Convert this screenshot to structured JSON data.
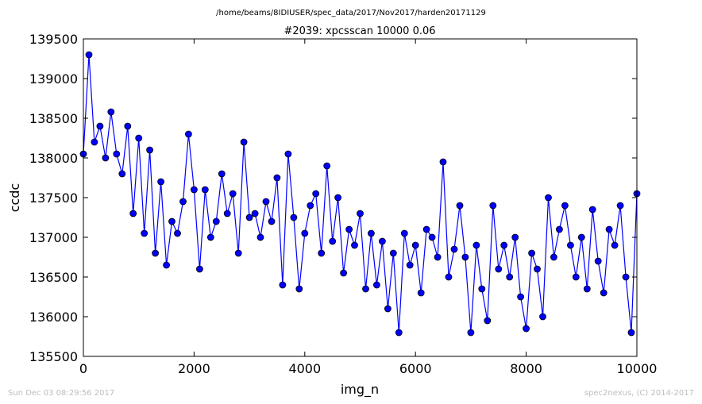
{
  "chart_data": {
    "type": "line",
    "suptitle": "/home/beams/8IDIUSER/spec_data/2017/Nov2017/harden20171129",
    "title": "#2039: xpcsscan 10000 0.06",
    "xlabel": "img_n",
    "ylabel": "ccdc",
    "xlim": [
      0,
      10000
    ],
    "ylim": [
      135500,
      139500
    ],
    "xticks": [
      0,
      2000,
      4000,
      6000,
      8000,
      10000
    ],
    "yticks": [
      135500,
      136000,
      136500,
      137000,
      137500,
      138000,
      138500,
      139000,
      139500
    ],
    "xtick_labels": [
      "0",
      "2000",
      "4000",
      "6000",
      "8000",
      "10000"
    ],
    "ytick_labels": [
      "135500",
      "136000",
      "136500",
      "137000",
      "137500",
      "138000",
      "138500",
      "139000",
      "139500"
    ],
    "grid": false,
    "marker": "circle",
    "line_color": "#0000ff",
    "marker_color": "#0000ff",
    "series": [
      {
        "x": [
          0,
          100,
          200,
          300,
          400,
          500,
          600,
          700,
          800,
          900,
          1000,
          1100,
          1200,
          1300,
          1400,
          1500,
          1600,
          1700,
          1800,
          1900,
          2000,
          2100,
          2200,
          2300,
          2400,
          2500,
          2600,
          2700,
          2800,
          2900,
          3000,
          3100,
          3200,
          3300,
          3400,
          3500,
          3600,
          3700,
          3800,
          3900,
          4000,
          4100,
          4200,
          4300,
          4400,
          4500,
          4600,
          4700,
          4800,
          4900,
          5000,
          5100,
          5200,
          5300,
          5400,
          5500,
          5600,
          5700,
          5800,
          5900,
          6000,
          6100,
          6200,
          6300,
          6400,
          6500,
          6600,
          6700,
          6800,
          6900,
          7000,
          7100,
          7200,
          7300,
          7400,
          7500,
          7600,
          7700,
          7800,
          7900,
          8000,
          8100,
          8200,
          8300,
          8400,
          8500,
          8600,
          8700,
          8800,
          8900,
          9000,
          9100,
          9200,
          9300,
          9400,
          9500,
          9600,
          9700,
          9800,
          9900,
          10000
        ],
        "y": [
          138050,
          139300,
          138200,
          138400,
          138000,
          138580,
          138050,
          137800,
          138400,
          137300,
          138250,
          137050,
          138100,
          136800,
          137700,
          136650,
          137200,
          137050,
          137450,
          138300,
          137600,
          136600,
          137600,
          137000,
          137200,
          137800,
          137300,
          137550,
          136800,
          138200,
          137250,
          137300,
          137000,
          137450,
          137200,
          137750,
          136400,
          138050,
          137250,
          136350,
          137050,
          137400,
          137550,
          136800,
          137900,
          136950,
          137500,
          136550,
          137100,
          136900,
          137300,
          136350,
          137050,
          136400,
          136950,
          136100,
          136800,
          135800,
          137050,
          136650,
          136900,
          136300,
          137100,
          137000,
          136750,
          137950,
          136500,
          136850,
          137400,
          136750,
          135800,
          136900,
          136350,
          135950,
          137400,
          136600,
          136900,
          136500,
          137000,
          136250,
          135850,
          136800,
          136600,
          136000,
          137500,
          136750,
          137100,
          137400,
          136900,
          136500,
          137000,
          136350,
          137350,
          136700,
          136300,
          137100,
          136900,
          137400,
          136500,
          135800,
          137550
        ]
      }
    ]
  },
  "footer": {
    "left": "Sun Dec 03 08:29:56 2017",
    "right": "spec2nexus, (C) 2014-2017"
  }
}
